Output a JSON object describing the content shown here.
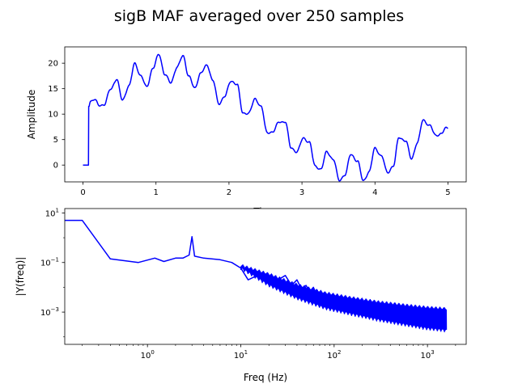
{
  "figure": {
    "title": "sigB MAF averaged over 250 samples"
  },
  "colors": {
    "line": "#0000ff",
    "axes": "#000000",
    "background": "#ffffff"
  },
  "chart_data": [
    {
      "type": "line",
      "title": "",
      "xlabel": "Time",
      "ylabel": "Amplitude",
      "xlim": [
        -0.25,
        5.25
      ],
      "ylim": [
        -3.3,
        23.2
      ],
      "xticks": [
        0,
        1,
        2,
        3,
        4,
        5
      ],
      "xtick_labels": [
        "0",
        "1",
        "2",
        "3",
        "4",
        "5"
      ],
      "yticks": [
        0,
        5,
        10,
        15,
        20
      ],
      "ytick_labels": [
        "0",
        "5",
        "10",
        "15",
        "20"
      ],
      "grid": false,
      "legend": "none",
      "series": [
        {
          "color": "#0000ff",
          "x": [
            0,
            0.075,
            0.078,
            0.1,
            0.16,
            0.22,
            0.29,
            0.38,
            0.46,
            0.54,
            0.63,
            0.71,
            0.79,
            0.87,
            0.96,
            1.04,
            1.12,
            1.2,
            1.29,
            1.37,
            1.45,
            1.53,
            1.61,
            1.7,
            1.78,
            1.86,
            1.94,
            2.03,
            2.11,
            2.19,
            2.27,
            2.36,
            2.44,
            2.52,
            2.6,
            2.69,
            2.77,
            2.85,
            2.93,
            3.02,
            3.1,
            3.18,
            3.26,
            3.34,
            3.43,
            3.51,
            3.59,
            3.67,
            3.76,
            3.84,
            3.92,
            4.0,
            4.09,
            4.17,
            4.25,
            4.33,
            4.42,
            4.5,
            4.58,
            4.66,
            4.75,
            4.83,
            4.91,
            4.97,
            5.0
          ],
          "y": [
            0,
            0,
            11.5,
            12.5,
            12.8,
            11.8,
            11.8,
            15,
            16.8,
            12.8,
            15.5,
            20,
            17.5,
            15.4,
            19,
            21.8,
            17.8,
            16.2,
            19.2,
            21.5,
            17.4,
            15.1,
            18,
            19.6,
            16.6,
            12,
            13.5,
            16.5,
            15.9,
            10.2,
            10.2,
            13,
            11.5,
            6.4,
            6.5,
            8.5,
            8.5,
            3.4,
            2.6,
            5.3,
            4.5,
            -0.2,
            -0.8,
            2.6,
            1.1,
            -3,
            -1.9,
            2.1,
            0.8,
            -3.1,
            -1.3,
            3.3,
            1.8,
            -1.5,
            -0.2,
            5.4,
            4.8,
            1.2,
            4.4,
            8.8,
            7.8,
            5.8,
            6.2,
            7.2,
            7.2
          ]
        }
      ]
    },
    {
      "type": "line",
      "title": "",
      "xlabel": "Freq (Hz)",
      "ylabel": "|Y(freq)|",
      "xscale": "log",
      "yscale": "log",
      "xlim": [
        0.13,
        2600
      ],
      "ylim": [
        5e-05,
        15
      ],
      "xticks": [
        1,
        10,
        100,
        1000
      ],
      "xtick_labels": [
        "10^0",
        "10^1",
        "10^2",
        "10^3"
      ],
      "yticks": [
        0.001,
        0.1,
        10
      ],
      "ytick_labels": [
        "10^-3",
        "10^-1",
        "10^1"
      ],
      "grid": false,
      "legend": "none",
      "series": [
        {
          "color": "#0000ff",
          "x": [
            0.1,
            0.2,
            0.4,
            0.8,
            1.2,
            1.5,
            2.0,
            2.4,
            2.8,
            3.0,
            3.2,
            4.0,
            6.0,
            8.0,
            10,
            12,
            15,
            18,
            22,
            25,
            30,
            35,
            40,
            45,
            50,
            55,
            60,
            65,
            70,
            80,
            90,
            100,
            120,
            150,
            200,
            300,
            500,
            800,
            1200,
            1600
          ],
          "y": [
            5,
            5,
            0.14,
            0.1,
            0.15,
            0.11,
            0.15,
            0.15,
            0.2,
            1.1,
            0.18,
            0.15,
            0.13,
            0.1,
            0.06,
            0.02,
            0.03,
            0.035,
            0.025,
            0.02,
            0.03,
            0.012,
            0.02,
            0.008,
            0.012,
            0.006,
            0.01,
            0.005,
            0.006,
            0.004,
            0.005,
            0.003,
            0.003,
            0.0025,
            0.002,
            0.0015,
            0.0011,
            0.0009,
            0.0008,
            0.0007
          ],
          "band": {
            "x": [
              10,
              20,
              40,
              80,
              150,
              300,
              600,
              1000,
              1600
            ],
            "low": [
              0.05,
              0.01,
              0.003,
              0.0012,
              0.0007,
              0.0004,
              0.00025,
              0.00018,
              0.00015
            ],
            "high": [
              0.09,
              0.04,
              0.015,
              0.007,
              0.0045,
              0.003,
              0.0022,
              0.0018,
              0.0016
            ]
          }
        }
      ]
    }
  ]
}
